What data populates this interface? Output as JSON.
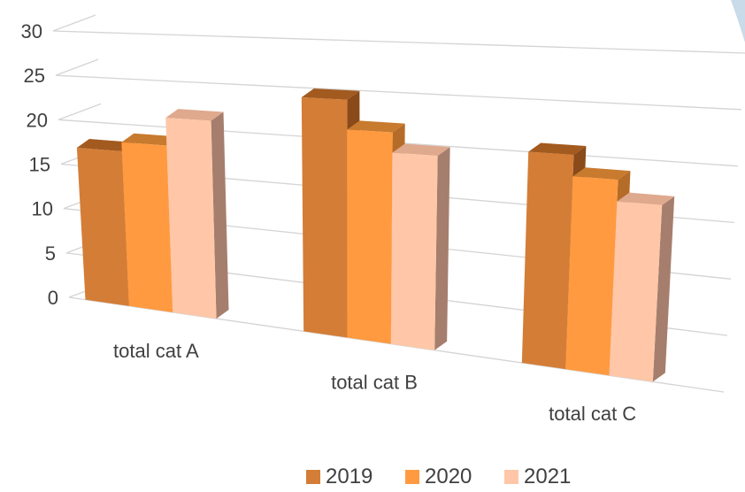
{
  "chart_data": {
    "type": "bar",
    "title": "",
    "xlabel": "",
    "ylabel": "",
    "ylim": [
      0,
      30
    ],
    "yticks": [
      0,
      5,
      10,
      15,
      20,
      25,
      30
    ],
    "grid": true,
    "legend_position": "bottom",
    "categories": [
      "total  cat A",
      "total cat B",
      "total cat C"
    ],
    "series": [
      {
        "name": "2019",
        "values": [
          17,
          24,
          20
        ],
        "color": "#d47d36",
        "top_color": "#a35a1f",
        "side_color": "#8a4a1a"
      },
      {
        "name": "2020",
        "values": [
          18,
          21,
          18
        ],
        "color": "#ff9a40",
        "top_color": "#c87a2e",
        "side_color": "#b56c28"
      },
      {
        "name": "2021",
        "values": [
          21,
          19,
          16
        ],
        "color": "#ffc7a7",
        "top_color": "#dfa98e",
        "side_color": "#a67e6d"
      }
    ]
  }
}
